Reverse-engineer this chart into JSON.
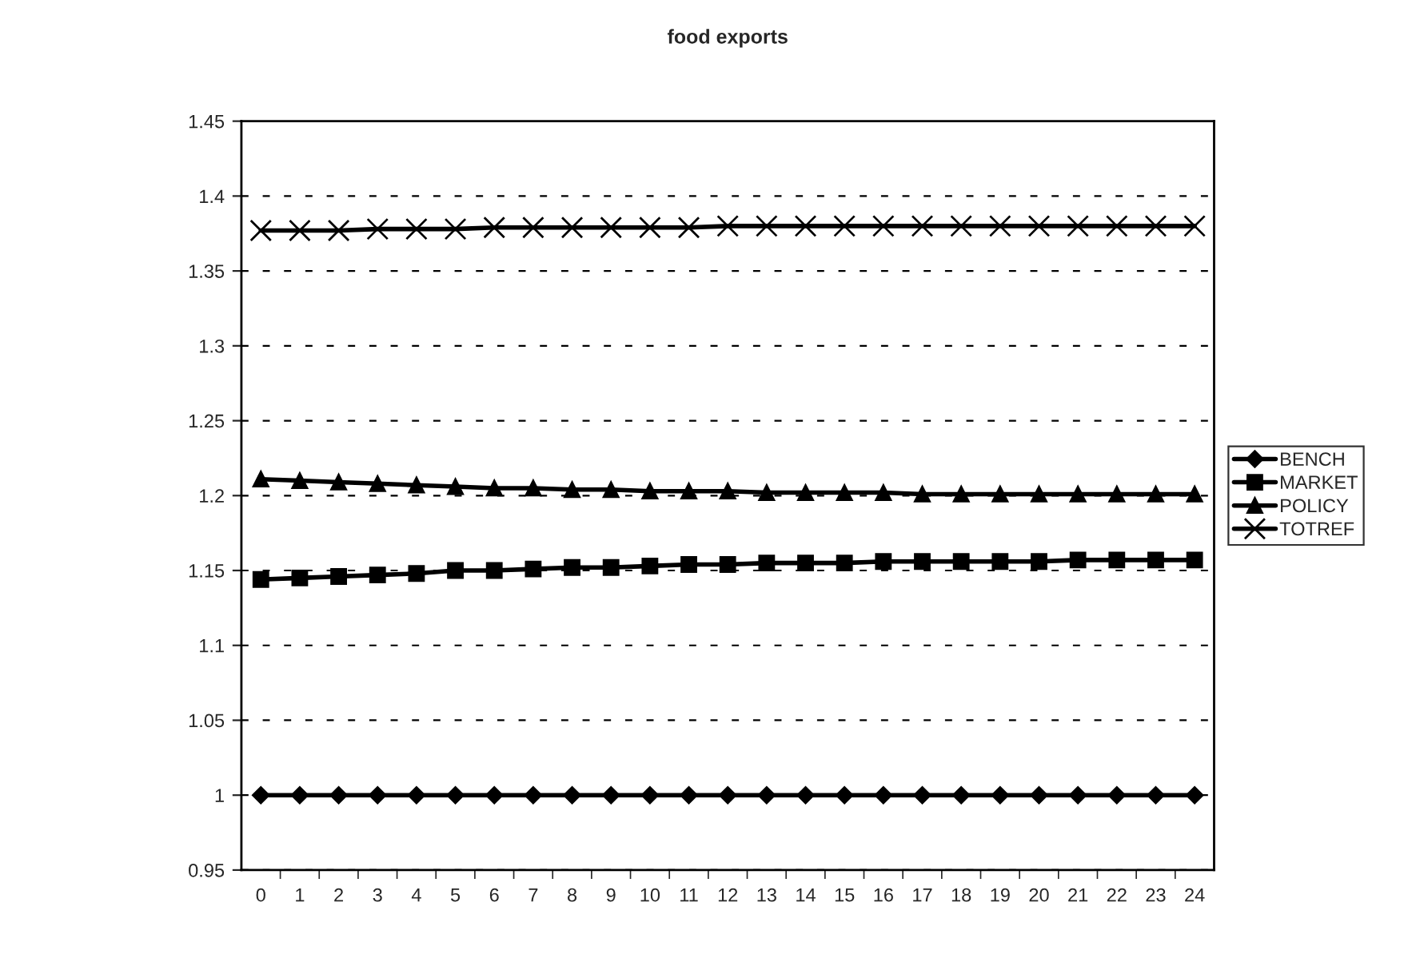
{
  "chart_data": {
    "type": "line",
    "title": "food exports",
    "categories": [
      "0",
      "1",
      "2",
      "3",
      "4",
      "5",
      "6",
      "7",
      "8",
      "9",
      "10",
      "11",
      "12",
      "13",
      "14",
      "15",
      "16",
      "17",
      "18",
      "19",
      "20",
      "21",
      "22",
      "23",
      "24"
    ],
    "series": [
      {
        "name": "BENCH",
        "color": "#000000",
        "marker": "diamond",
        "values": [
          1,
          1,
          1,
          1,
          1,
          1,
          1,
          1,
          1,
          1,
          1,
          1,
          1,
          1,
          1,
          1,
          1,
          1,
          1,
          1,
          1,
          1,
          1,
          1,
          1
        ]
      },
      {
        "name": "MARKET",
        "color": "#000000",
        "marker": "square",
        "values": [
          1.144,
          1.145,
          1.146,
          1.147,
          1.148,
          1.15,
          1.15,
          1.151,
          1.152,
          1.152,
          1.153,
          1.154,
          1.154,
          1.155,
          1.155,
          1.155,
          1.156,
          1.156,
          1.156,
          1.156,
          1.156,
          1.157,
          1.157,
          1.157,
          1.157
        ]
      },
      {
        "name": "POLICY",
        "color": "#000000",
        "marker": "triangle",
        "values": [
          1.211,
          1.21,
          1.209,
          1.208,
          1.207,
          1.206,
          1.205,
          1.205,
          1.204,
          1.204,
          1.203,
          1.203,
          1.203,
          1.202,
          1.202,
          1.202,
          1.202,
          1.201,
          1.201,
          1.201,
          1.201,
          1.201,
          1.201,
          1.201,
          1.201
        ]
      },
      {
        "name": "TOTREF",
        "color": "#000000",
        "marker": "cross",
        "values": [
          1.377,
          1.377,
          1.377,
          1.378,
          1.378,
          1.378,
          1.379,
          1.379,
          1.379,
          1.379,
          1.379,
          1.379,
          1.38,
          1.38,
          1.38,
          1.38,
          1.38,
          1.38,
          1.38,
          1.38,
          1.38,
          1.38,
          1.38,
          1.38,
          1.38
        ]
      }
    ],
    "ylim": [
      0.95,
      1.45
    ],
    "yticks": [
      {
        "value": 0.95,
        "label": "0.95"
      },
      {
        "value": 1,
        "label": "1"
      },
      {
        "value": 1.05,
        "label": "1.05"
      },
      {
        "value": 1.1,
        "label": "1.1"
      },
      {
        "value": 1.15,
        "label": "1.15"
      },
      {
        "value": 1.2,
        "label": "1.2"
      },
      {
        "value": 1.25,
        "label": "1.25"
      },
      {
        "value": 1.3,
        "label": "1.3"
      },
      {
        "value": 1.35,
        "label": "1.35"
      },
      {
        "value": 1.4,
        "label": "1.4"
      },
      {
        "value": 1.45,
        "label": "1.45"
      }
    ],
    "grid": "y",
    "legend": "right",
    "line_style": "solid"
  }
}
